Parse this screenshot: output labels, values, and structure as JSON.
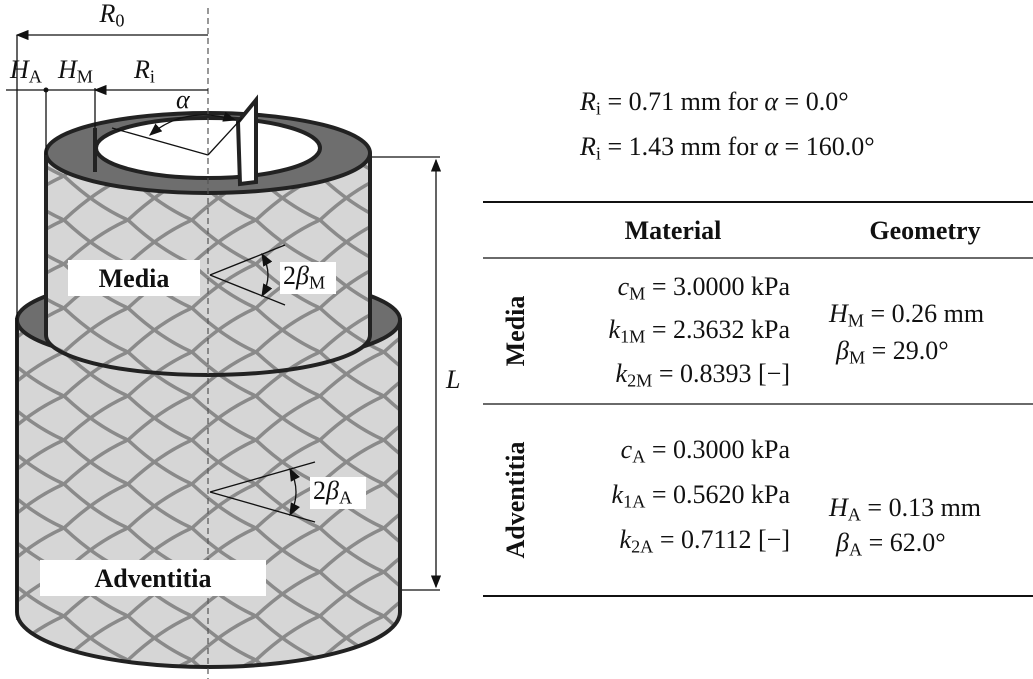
{
  "diagram": {
    "labels": {
      "R0": [
        {
          "i": "R"
        },
        {
          "sub": "0"
        }
      ],
      "HA": [
        {
          "i": "H"
        },
        {
          "sub": "A"
        }
      ],
      "HM": [
        {
          "i": "H"
        },
        {
          "sub": "M"
        }
      ],
      "Ri": [
        {
          "i": "R"
        },
        {
          "sub": "i"
        }
      ],
      "alpha": [
        {
          "i": "α"
        }
      ],
      "L": [
        {
          "i": "L"
        }
      ],
      "betaM": [
        {
          "t": "2"
        },
        {
          "i": "β"
        },
        {
          "sub": "M"
        }
      ],
      "betaA": [
        {
          "t": "2"
        },
        {
          "i": "β"
        },
        {
          "sub": "A"
        }
      ]
    },
    "layers": [
      "Media",
      "Adventitia"
    ]
  },
  "equations": [
    [
      {
        "i": "R"
      },
      {
        "sub": "i"
      },
      {
        "t": " = 0.71 mm for "
      },
      {
        "i": "α"
      },
      {
        "t": " = 0.0°"
      }
    ],
    [
      {
        "i": "R"
      },
      {
        "sub": "i"
      },
      {
        "t": " = 1.43 mm for "
      },
      {
        "i": "α"
      },
      {
        "t": " = 160.0°"
      }
    ]
  ],
  "table": {
    "headers": [
      "Material",
      "Geometry"
    ],
    "rows": [
      {
        "label": "Media",
        "material": [
          [
            {
              "i": "c"
            },
            {
              "sub": "M"
            },
            {
              "t": " = 3.0000 kPa"
            }
          ],
          [
            {
              "i": "k"
            },
            {
              "sub": "1M"
            },
            {
              "t": " = 2.3632 kPa"
            }
          ],
          [
            {
              "i": "k"
            },
            {
              "sub": "2M"
            },
            {
              "t": " = 0.8393 [−]"
            }
          ]
        ],
        "geometry": [
          [
            {
              "i": "H"
            },
            {
              "sub": "M"
            },
            {
              "t": " = 0.26 mm"
            }
          ],
          [
            {
              "i": "β"
            },
            {
              "sub": "M"
            },
            {
              "t": " = 29.0°"
            }
          ]
        ]
      },
      {
        "label": "Adventitia",
        "material": [
          [
            {
              "i": "c"
            },
            {
              "sub": "A"
            },
            {
              "t": " = 0.3000 kPa"
            }
          ],
          [
            {
              "i": "k"
            },
            {
              "sub": "1A"
            },
            {
              "t": " = 0.5620 kPa"
            }
          ],
          [
            {
              "i": "k"
            },
            {
              "sub": "2A"
            },
            {
              "t": " = 0.7112 [−]"
            }
          ]
        ],
        "geometry": [
          [
            {
              "i": "H"
            },
            {
              "sub": "A"
            },
            {
              "t": " = 0.13 mm"
            }
          ],
          [
            {
              "i": "β"
            },
            {
              "sub": "A"
            },
            {
              "t": " = 62.0°"
            }
          ]
        ]
      }
    ]
  }
}
